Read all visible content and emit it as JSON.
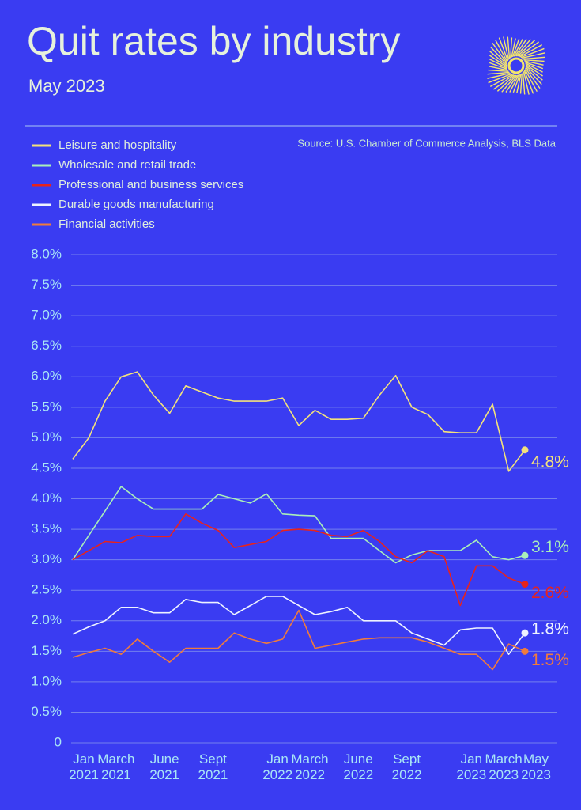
{
  "chart_data": {
    "type": "line",
    "title": "Quit rates by industry",
    "subtitle": "May 2023",
    "source": "Source: U.S. Chamber of Commerce Analysis, BLS Data",
    "categories": [
      "Jan 2021",
      null,
      "March 2021",
      null,
      null,
      "June 2021",
      null,
      null,
      "Sept 2021",
      null,
      null,
      null,
      "Jan 2022",
      null,
      "March 2022",
      null,
      null,
      "June 2022",
      null,
      null,
      "Sept 2022",
      null,
      null,
      null,
      "Jan 2023",
      null,
      "March 2023",
      null,
      "May 2023"
    ],
    "ylim": [
      0,
      8
    ],
    "yticks": [
      0,
      {
        "value": 0.5,
        "label": "0.5%"
      },
      {
        "value": 1,
        "label": "1.0%"
      },
      {
        "value": 1.5,
        "label": "1.5%"
      },
      {
        "value": 2,
        "label": "2.0%"
      },
      {
        "value": 2.5,
        "label": "2.5%"
      },
      {
        "value": 3,
        "label": "3.0%"
      },
      {
        "value": 3.5,
        "label": "3.5%"
      },
      {
        "value": 4,
        "label": "4.0%"
      },
      {
        "value": 4.5,
        "label": "4.5%"
      },
      {
        "value": 5,
        "label": "5.0%"
      },
      {
        "value": 5.5,
        "label": "5.5%"
      },
      {
        "value": 6,
        "label": "6.0%"
      },
      {
        "value": 6.5,
        "label": "6.5%"
      },
      {
        "value": 7,
        "label": "7.0%"
      },
      {
        "value": 7.5,
        "label": "7.5%"
      },
      {
        "value": 8,
        "label": "8.0%"
      }
    ],
    "grid": true,
    "legend": "top-left",
    "series": [
      {
        "name": "Leisure and hospitality",
        "color": "#f3e27c",
        "values": [
          4.65,
          5.0,
          5.6,
          6.0,
          6.08,
          5.7,
          5.4,
          5.85,
          5.75,
          5.65,
          5.6,
          5.6,
          5.6,
          5.65,
          5.2,
          5.45,
          5.3,
          5.3,
          5.32,
          5.7,
          6.02,
          5.5,
          5.38,
          5.1,
          5.08,
          5.08,
          5.55,
          4.45,
          4.8
        ],
        "value_labels": [
          null,
          null,
          null,
          null,
          null,
          null,
          null,
          null,
          null,
          null,
          null,
          null,
          null,
          null,
          null,
          null,
          null,
          null,
          null,
          null,
          null,
          null,
          null,
          null,
          null,
          null,
          null,
          null,
          "4.8%"
        ]
      },
      {
        "name": "Wholesale and retail trade",
        "color": "#a9efb9",
        "values": [
          3.0,
          3.4,
          3.8,
          4.2,
          4.0,
          3.83,
          3.83,
          3.83,
          3.83,
          4.07,
          4.0,
          3.93,
          4.08,
          3.75,
          3.73,
          3.72,
          3.35,
          3.35,
          3.35,
          3.15,
          2.95,
          3.08,
          3.15,
          3.15,
          3.15,
          3.32,
          3.05,
          3.0,
          3.07
        ],
        "value_labels": [
          null,
          null,
          null,
          null,
          null,
          null,
          null,
          null,
          null,
          null,
          null,
          null,
          null,
          null,
          null,
          null,
          null,
          null,
          null,
          null,
          null,
          null,
          null,
          null,
          null,
          null,
          null,
          null,
          "3.1%"
        ]
      },
      {
        "name": "Professional and business services",
        "color": "#e8231c",
        "values": [
          3.0,
          3.15,
          3.3,
          3.28,
          3.4,
          3.38,
          3.38,
          3.75,
          3.6,
          3.48,
          3.2,
          3.25,
          3.3,
          3.48,
          3.5,
          3.48,
          3.4,
          3.38,
          3.48,
          3.3,
          3.05,
          2.95,
          3.15,
          3.05,
          2.25,
          2.9,
          2.9,
          2.7,
          2.6
        ],
        "value_labels": [
          null,
          null,
          null,
          null,
          null,
          null,
          null,
          null,
          null,
          null,
          null,
          null,
          null,
          null,
          null,
          null,
          null,
          null,
          null,
          null,
          null,
          null,
          null,
          null,
          null,
          null,
          null,
          null,
          "2.6%"
        ]
      },
      {
        "name": "Durable goods manufacturing",
        "color": "#eef3ff",
        "values": [
          1.78,
          1.9,
          2.0,
          2.22,
          2.22,
          2.13,
          2.13,
          2.35,
          2.3,
          2.3,
          2.1,
          2.25,
          2.4,
          2.4,
          2.25,
          2.1,
          2.15,
          2.22,
          2.0,
          2.0,
          2.0,
          1.8,
          1.7,
          1.6,
          1.85,
          1.88,
          1.88,
          1.45,
          1.8
        ],
        "value_labels": [
          null,
          null,
          null,
          null,
          null,
          null,
          null,
          null,
          null,
          null,
          null,
          null,
          null,
          null,
          null,
          null,
          null,
          null,
          null,
          null,
          null,
          null,
          null,
          null,
          null,
          null,
          null,
          null,
          "1.8%"
        ]
      },
      {
        "name": "Financial activities",
        "color": "#f07b3c",
        "values": [
          1.4,
          1.48,
          1.55,
          1.45,
          1.7,
          1.5,
          1.32,
          1.55,
          1.55,
          1.55,
          1.8,
          1.7,
          1.63,
          1.7,
          2.17,
          1.55,
          1.6,
          1.65,
          1.7,
          1.72,
          1.72,
          1.72,
          1.65,
          1.55,
          1.45,
          1.45,
          1.2,
          1.62,
          1.5
        ],
        "value_labels": [
          null,
          null,
          null,
          null,
          null,
          null,
          null,
          null,
          null,
          null,
          null,
          null,
          null,
          null,
          null,
          null,
          null,
          null,
          null,
          null,
          null,
          null,
          null,
          null,
          null,
          null,
          null,
          null,
          "1.5%"
        ]
      }
    ]
  }
}
